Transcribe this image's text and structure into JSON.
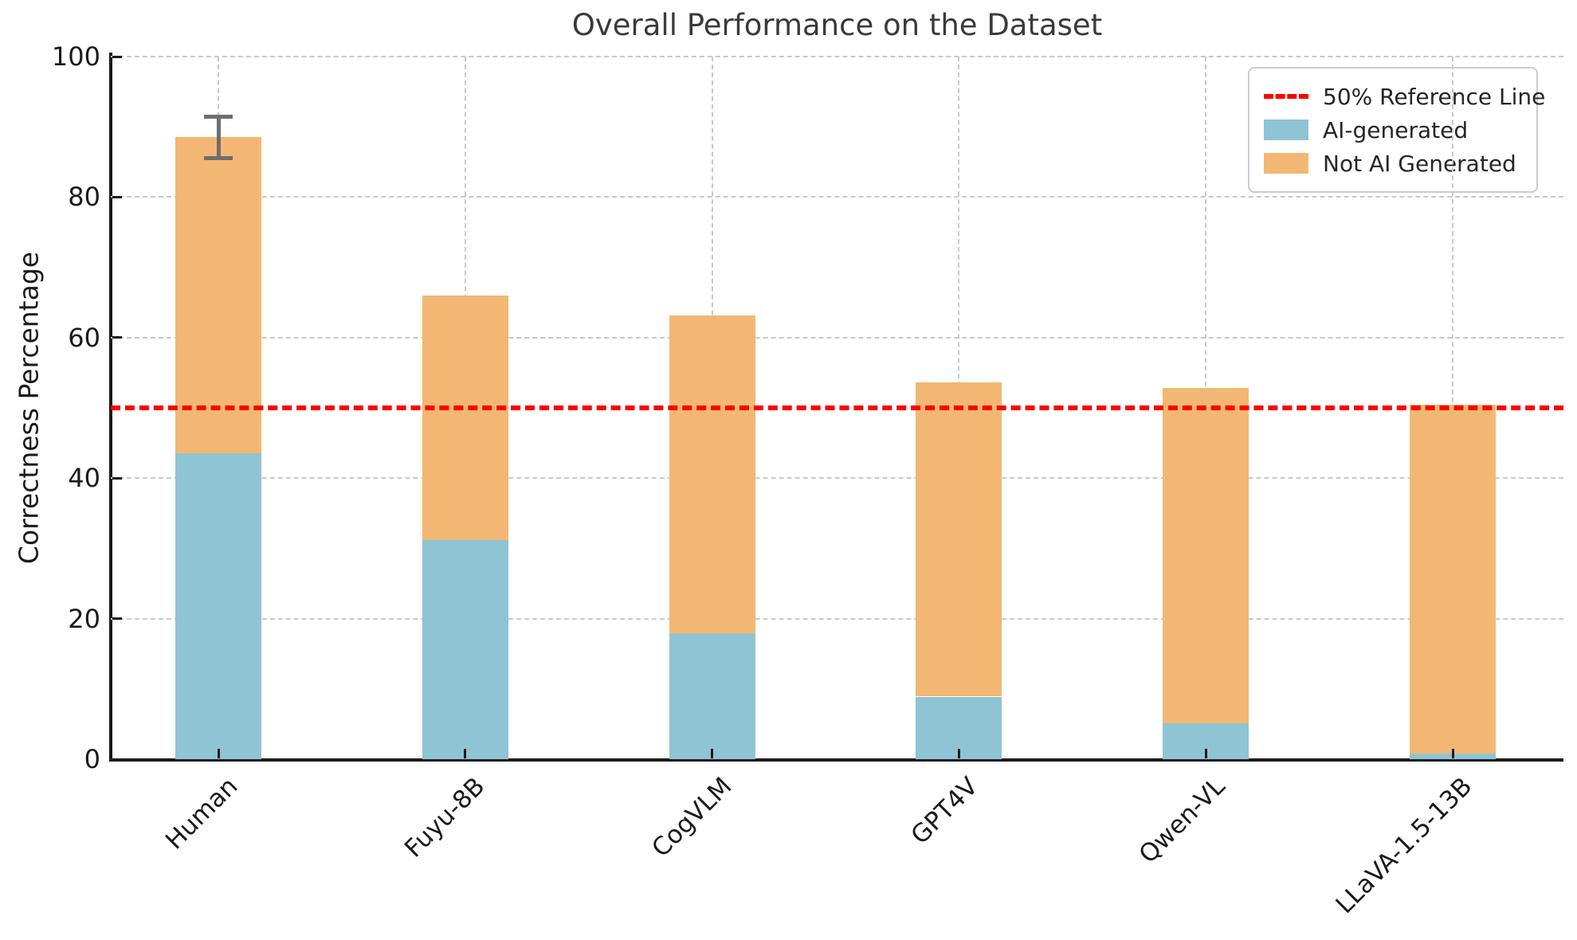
{
  "title": "Overall Performance on the Dataset",
  "ylabel": "Correctness Percentage",
  "colors": {
    "ai_generated": "#8fc4d4",
    "not_ai_generated": "#f2b873",
    "reference_line": "#ff0000",
    "error_bar": "#6e6e6e",
    "title_text": "#3a3a3a",
    "axis_text": "#1a1a1a",
    "gridline": "#c9c9c9"
  },
  "legend": {
    "items": [
      {
        "kind": "dashed-line",
        "label": "50% Reference Line",
        "color": "#ff0000"
      },
      {
        "kind": "patch",
        "label": "AI-generated",
        "color": "#8fc4d4"
      },
      {
        "kind": "patch",
        "label": "Not AI Generated",
        "color": "#f2b873"
      }
    ]
  },
  "chart_data": {
    "type": "bar",
    "stacked": true,
    "title": "Overall Performance on the Dataset",
    "xlabel": "",
    "ylabel": "Correctness Percentage",
    "categories": [
      "Human",
      "Fuyu-8B",
      "CogVLM",
      "GPT4V",
      "Qwen-VL",
      "LLaVA-1.5-13B"
    ],
    "series": [
      {
        "name": "AI-generated",
        "color": "#8fc4d4",
        "values": [
          43.5,
          31.2,
          17.9,
          8.9,
          5.1,
          0.8
        ]
      },
      {
        "name": "Not AI Generated",
        "color": "#f2b873",
        "values": [
          45.0,
          34.8,
          45.3,
          44.7,
          47.7,
          49.6
        ]
      }
    ],
    "stacked_totals": [
      88.5,
      66.0,
      63.2,
      53.6,
      52.8,
      50.4
    ],
    "error_bars": [
      {
        "category": "Human",
        "top_of_stack": 88.5,
        "upper": 91.4,
        "lower": 85.6
      }
    ],
    "reference_line": {
      "value": 50,
      "label": "50% Reference Line",
      "color": "#ff0000"
    },
    "ylim": [
      0,
      100
    ],
    "yticks": [
      0,
      20,
      40,
      60,
      80,
      100
    ],
    "grid": true,
    "legend_position": "upper right",
    "x_tick_rotation_deg": 45
  }
}
